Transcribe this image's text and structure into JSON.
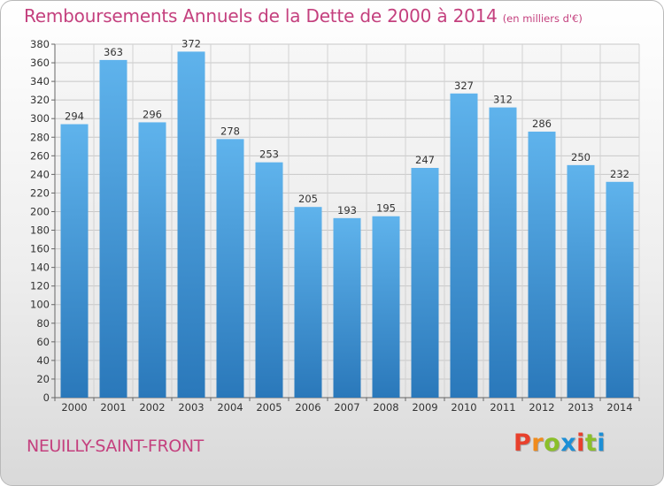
{
  "header": {
    "title": "Remboursements Annuels de la Dette de 2000 à 2014",
    "unit": "(en milliers d'€)"
  },
  "footer": {
    "commune": "NEUILLY-SAINT-FRONT",
    "logo": "Proxiti"
  },
  "colors": {
    "title": "#c4407e",
    "bar_light": "#5aaee8",
    "bar_dark": "#2b7bbd",
    "logo_letters": [
      "#e8402c",
      "#f08b1c",
      "#8bbf2a",
      "#1c8fd6",
      "#e8402c",
      "#8bbf2a",
      "#1c8fd6"
    ]
  },
  "chart_data": {
    "type": "bar",
    "title": "Remboursements Annuels de la Dette de 2000 à 2014",
    "subtitle": "(en milliers d'€)",
    "xlabel": "",
    "ylabel": "",
    "categories": [
      "2000",
      "2001",
      "2002",
      "2003",
      "2004",
      "2005",
      "2006",
      "2007",
      "2008",
      "2009",
      "2010",
      "2011",
      "2012",
      "2013",
      "2014"
    ],
    "values": [
      294,
      363,
      296,
      372,
      278,
      253,
      205,
      193,
      195,
      247,
      327,
      312,
      286,
      250,
      232
    ],
    "ylim": [
      0,
      380
    ],
    "ytick_step": 20,
    "grid": true,
    "legend": "none"
  }
}
